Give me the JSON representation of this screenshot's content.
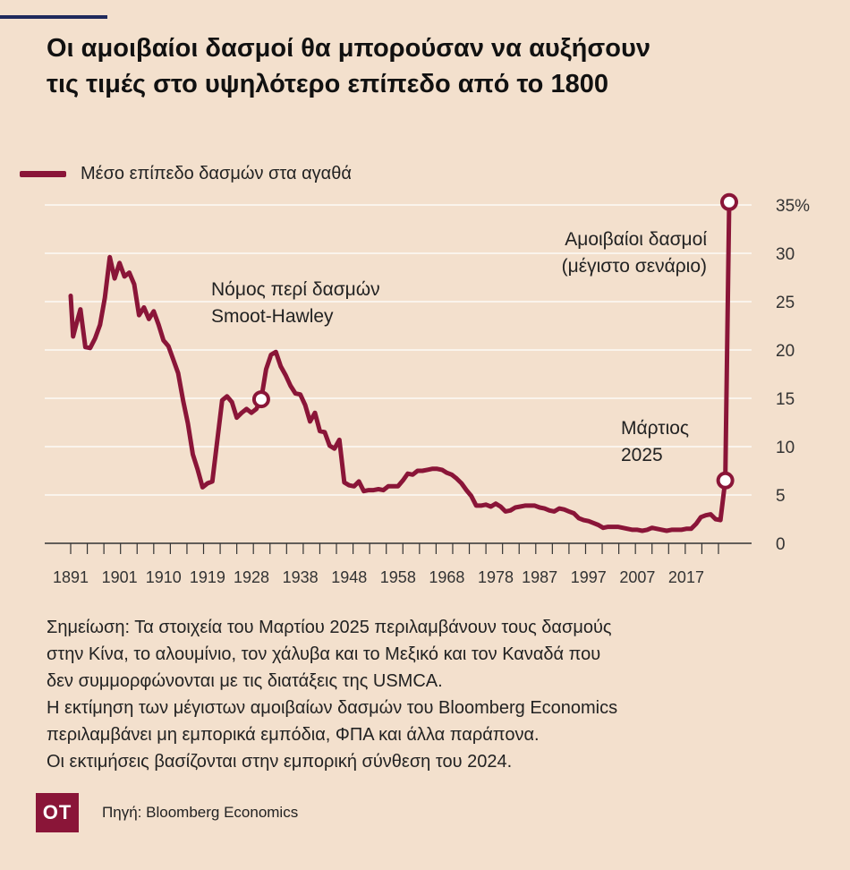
{
  "header": {
    "title_line1": "Οι αμοιβαίοι δασμοί θα μπορούσαν να αυξήσουν",
    "title_line2": "τις τιμές στο υψηλότερο επίπεδο από το 1800"
  },
  "legend": {
    "label": "Μέσο επίπεδο δασμών στα αγαθά"
  },
  "colors": {
    "accent": "#8a1538",
    "background": "#f3e0cd",
    "header_bar": "#1f2a5c"
  },
  "chart_data": {
    "type": "line",
    "title": "",
    "xlabel": "",
    "ylabel": "",
    "ylim": [
      0,
      35
    ],
    "grid": true,
    "legend_position": "top-left",
    "y_ticks": [
      "0",
      "5",
      "10",
      "15",
      "20",
      "25",
      "30",
      "35%"
    ],
    "x_ticks": [
      "1891",
      "1901",
      "1910",
      "1919",
      "1928",
      "1938",
      "1948",
      "1958",
      "1968",
      "1978",
      "1987",
      "1997",
      "2007",
      "2017"
    ],
    "series": [
      {
        "name": "Μέσο επίπεδο δασμών στα αγαθά",
        "points": [
          [
            1891,
            25.6
          ],
          [
            1891.5,
            21.4
          ],
          [
            1892,
            22.4
          ],
          [
            1893,
            24.2
          ],
          [
            1894,
            20.3
          ],
          [
            1895,
            20.2
          ],
          [
            1896,
            21.2
          ],
          [
            1897,
            22.6
          ],
          [
            1898,
            25.4
          ],
          [
            1899,
            29.6
          ],
          [
            1900,
            27.4
          ],
          [
            1901,
            29.0
          ],
          [
            1902,
            27.6
          ],
          [
            1903,
            28.0
          ],
          [
            1904,
            26.8
          ],
          [
            1905,
            23.6
          ],
          [
            1906,
            24.4
          ],
          [
            1907,
            23.2
          ],
          [
            1908,
            24.0
          ],
          [
            1909,
            22.6
          ],
          [
            1910,
            21.0
          ],
          [
            1911,
            20.4
          ],
          [
            1912,
            19.0
          ],
          [
            1913,
            17.6
          ],
          [
            1914,
            14.8
          ],
          [
            1915,
            12.4
          ],
          [
            1916,
            9.2
          ],
          [
            1917,
            7.6
          ],
          [
            1918,
            5.8
          ],
          [
            1919,
            6.2
          ],
          [
            1920,
            6.4
          ],
          [
            1921,
            10.6
          ],
          [
            1922,
            14.8
          ],
          [
            1923,
            15.2
          ],
          [
            1924,
            14.6
          ],
          [
            1925,
            13.0
          ],
          [
            1926,
            13.5
          ],
          [
            1927,
            13.9
          ],
          [
            1928,
            13.5
          ],
          [
            1929,
            13.9
          ],
          [
            1930,
            14.9
          ],
          [
            1931,
            18.0
          ],
          [
            1932,
            19.5
          ],
          [
            1933,
            19.8
          ],
          [
            1934,
            18.3
          ],
          [
            1935,
            17.4
          ],
          [
            1936,
            16.3
          ],
          [
            1937,
            15.5
          ],
          [
            1938,
            15.4
          ],
          [
            1939,
            14.3
          ],
          [
            1940,
            12.6
          ],
          [
            1941,
            13.5
          ],
          [
            1942,
            11.6
          ],
          [
            1943,
            11.5
          ],
          [
            1944,
            10.1
          ],
          [
            1945,
            9.8
          ],
          [
            1946,
            10.7
          ],
          [
            1947,
            6.3
          ],
          [
            1948,
            6.0
          ],
          [
            1949,
            5.9
          ],
          [
            1950,
            6.4
          ],
          [
            1951,
            5.4
          ],
          [
            1952,
            5.5
          ],
          [
            1953,
            5.5
          ],
          [
            1954,
            5.6
          ],
          [
            1955,
            5.5
          ],
          [
            1956,
            5.9
          ],
          [
            1957,
            5.9
          ],
          [
            1958,
            5.9
          ],
          [
            1959,
            6.5
          ],
          [
            1960,
            7.2
          ],
          [
            1961,
            7.1
          ],
          [
            1962,
            7.5
          ],
          [
            1963,
            7.5
          ],
          [
            1964,
            7.6
          ],
          [
            1965,
            7.7
          ],
          [
            1966,
            7.7
          ],
          [
            1967,
            7.6
          ],
          [
            1968,
            7.3
          ],
          [
            1969,
            7.1
          ],
          [
            1970,
            6.7
          ],
          [
            1971,
            6.2
          ],
          [
            1972,
            5.5
          ],
          [
            1973,
            4.9
          ],
          [
            1974,
            3.9
          ],
          [
            1975,
            3.9
          ],
          [
            1976,
            4.0
          ],
          [
            1977,
            3.8
          ],
          [
            1978,
            4.1
          ],
          [
            1979,
            3.8
          ],
          [
            1980,
            3.3
          ],
          [
            1981,
            3.4
          ],
          [
            1982,
            3.7
          ],
          [
            1983,
            3.8
          ],
          [
            1984,
            3.9
          ],
          [
            1985,
            3.9
          ],
          [
            1986,
            3.9
          ],
          [
            1987,
            3.7
          ],
          [
            1988,
            3.6
          ],
          [
            1989,
            3.4
          ],
          [
            1990,
            3.3
          ],
          [
            1991,
            3.6
          ],
          [
            1992,
            3.5
          ],
          [
            1993,
            3.3
          ],
          [
            1994,
            3.1
          ],
          [
            1995,
            2.6
          ],
          [
            1996,
            2.4
          ],
          [
            1997,
            2.3
          ],
          [
            1998,
            2.1
          ],
          [
            1999,
            1.9
          ],
          [
            2000,
            1.6
          ],
          [
            2001,
            1.7
          ],
          [
            2002,
            1.7
          ],
          [
            2003,
            1.7
          ],
          [
            2004,
            1.6
          ],
          [
            2005,
            1.5
          ],
          [
            2006,
            1.4
          ],
          [
            2007,
            1.4
          ],
          [
            2008,
            1.3
          ],
          [
            2009,
            1.4
          ],
          [
            2010,
            1.6
          ],
          [
            2011,
            1.5
          ],
          [
            2012,
            1.4
          ],
          [
            2013,
            1.3
          ],
          [
            2014,
            1.4
          ],
          [
            2015,
            1.4
          ],
          [
            2016,
            1.4
          ],
          [
            2017,
            1.5
          ],
          [
            2018,
            1.5
          ],
          [
            2019,
            2.0
          ],
          [
            2020,
            2.7
          ],
          [
            2021,
            2.9
          ],
          [
            2022,
            3.0
          ],
          [
            2023,
            2.5
          ],
          [
            2024,
            2.4
          ],
          [
            2025,
            6.5
          ],
          [
            2025.8,
            35.3
          ]
        ]
      }
    ],
    "highlighted_points": [
      {
        "x": 1930,
        "y": 14.9
      },
      {
        "x": 2025,
        "y": 6.5
      },
      {
        "x": 2025.8,
        "y": 35.3
      }
    ],
    "annotations": [
      {
        "lines": [
          "Νόμος περί δασμών",
          "Smoot-Hawley"
        ]
      },
      {
        "lines": [
          "Αμοιβαίοι δασμοί",
          "(μέγιστο σενάριο)"
        ]
      },
      {
        "lines": [
          "Μάρτιος",
          "2025"
        ]
      }
    ]
  },
  "notes": [
    "Σημείωση: Τα στοιχεία του Μαρτίου 2025 περιλαμβάνουν τους δασμούς",
    "στην Κίνα, το αλουμίνιο, τον χάλυβα και το Μεξικό και τον Καναδά που",
    "δεν συμμορφώνονται με τις διατάξεις της USMCA.",
    "Η εκτίμηση των μέγιστων αμοιβαίων δασμών του Bloomberg Economics",
    "περιλαμβάνει μη εμπορικά εμπόδια, ΦΠΑ και άλλα παράπονα.",
    "Οι εκτιμήσεις βασίζονται στην εμπορική σύνθεση του 2024."
  ],
  "footer": {
    "logo_text": "OT",
    "source": "Πηγή: Bloomberg Economics"
  }
}
